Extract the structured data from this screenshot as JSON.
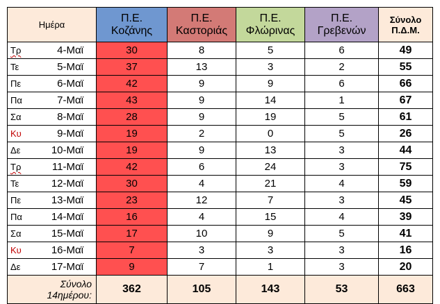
{
  "headers": {
    "day": "Ημέρα",
    "kozani_line1": "Π.Ε.",
    "kozani_line2": "Κοζάνης",
    "kastoria_line1": "Π.Ε.",
    "kastoria_line2": "Καστοριάς",
    "florina_line1": "Π.Ε.",
    "florina_line2": "Φλώρινας",
    "grevena_line1": "Π.Ε.",
    "grevena_line2": "Γρεβενών",
    "total_line1": "Σύνολο",
    "total_line2": "Π.Δ.Μ."
  },
  "rows": [
    {
      "dow": "Τρ",
      "date": "4-Μαϊ",
      "kozani": "30",
      "kastoria": "8",
      "florina": "5",
      "grevena": "6",
      "total": "49"
    },
    {
      "dow": "Τε",
      "date": "5-Μαϊ",
      "kozani": "37",
      "kastoria": "13",
      "florina": "3",
      "grevena": "2",
      "total": "55"
    },
    {
      "dow": "Πε",
      "date": "6-Μαϊ",
      "kozani": "42",
      "kastoria": "9",
      "florina": "9",
      "grevena": "6",
      "total": "66"
    },
    {
      "dow": "Πα",
      "date": "7-Μαϊ",
      "kozani": "43",
      "kastoria": "9",
      "florina": "14",
      "grevena": "1",
      "total": "67"
    },
    {
      "dow": "Σα",
      "date": "8-Μαϊ",
      "kozani": "28",
      "kastoria": "9",
      "florina": "19",
      "grevena": "5",
      "total": "61"
    },
    {
      "dow": "Κυ",
      "date": "9-Μαϊ",
      "kozani": "19",
      "kastoria": "2",
      "florina": "0",
      "grevena": "5",
      "total": "26"
    },
    {
      "dow": "Δε",
      "date": "10-Μαϊ",
      "kozani": "19",
      "kastoria": "9",
      "florina": "13",
      "grevena": "3",
      "total": "44"
    },
    {
      "dow": "Τρ",
      "date": "11-Μαϊ",
      "kozani": "42",
      "kastoria": "6",
      "florina": "24",
      "grevena": "3",
      "total": "75"
    },
    {
      "dow": "Τε",
      "date": "12-Μαϊ",
      "kozani": "30",
      "kastoria": "4",
      "florina": "21",
      "grevena": "4",
      "total": "59"
    },
    {
      "dow": "Πε",
      "date": "13-Μαϊ",
      "kozani": "23",
      "kastoria": "12",
      "florina": "7",
      "grevena": "3",
      "total": "45"
    },
    {
      "dow": "Πα",
      "date": "14-Μαϊ",
      "kozani": "16",
      "kastoria": "4",
      "florina": "15",
      "grevena": "4",
      "total": "39"
    },
    {
      "dow": "Σα",
      "date": "15-Μαϊ",
      "kozani": "17",
      "kastoria": "10",
      "florina": "9",
      "grevena": "5",
      "total": "41"
    },
    {
      "dow": "Κυ",
      "date": "16-Μαϊ",
      "kozani": "7",
      "kastoria": "3",
      "florina": "3",
      "grevena": "3",
      "total": "16"
    },
    {
      "dow": "Δε",
      "date": "17-Μαϊ",
      "kozani": "9",
      "kastoria": "7",
      "florina": "1",
      "grevena": "3",
      "total": "20"
    }
  ],
  "footer": {
    "label_line1": "Σύνολο",
    "label_line2": "14ημέρου:",
    "kozani": "362",
    "kastoria": "105",
    "florina": "143",
    "grevena": "53",
    "total": "663"
  },
  "colors": {
    "kozani_header": "#6f97d0",
    "kastoria_header": "#d37a76",
    "florina_header": "#c3d89b",
    "grevena_header": "#b3a2c7",
    "day_total_header": "#fdeada",
    "kozani_cells": "#ff5050",
    "sunday_text": "#c00000"
  }
}
